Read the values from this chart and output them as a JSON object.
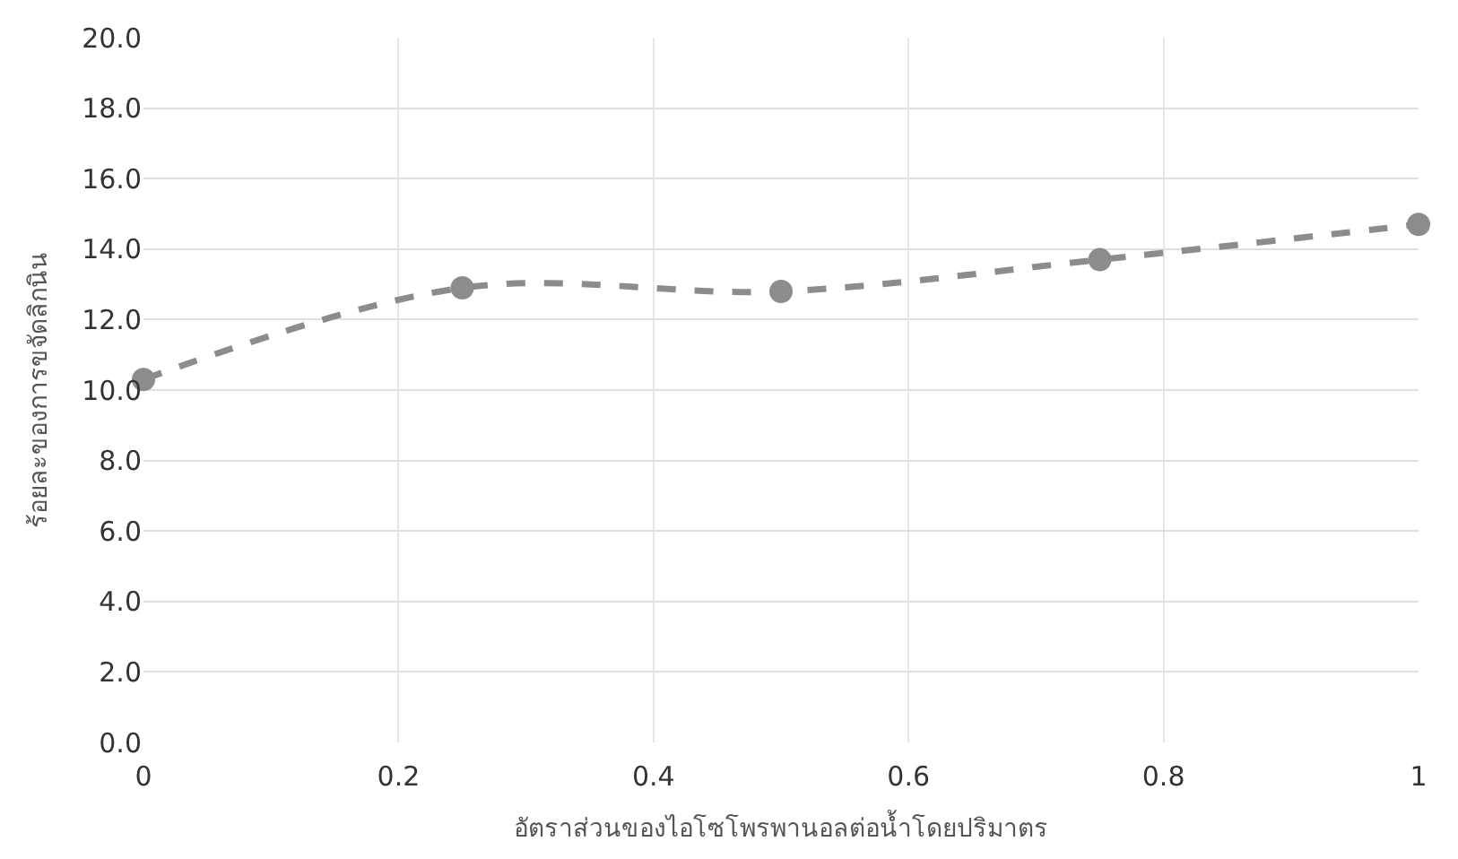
{
  "chart_data": {
    "type": "line",
    "xlabel": "อัตราส่วนของไอโซโพรพานอลต่อน้ำโดยปริมาตร",
    "ylabel": "ร้อยละของการขจัดลิกนิน",
    "x": [
      0,
      0.25,
      0.5,
      0.75,
      1
    ],
    "series": [
      {
        "color": "#8c8c8c",
        "values": [
          10.3,
          12.9,
          12.8,
          13.7,
          14.7
        ]
      }
    ],
    "xlim": [
      0,
      1
    ],
    "xticks": [
      0,
      0.2,
      0.4,
      0.6,
      0.8,
      1
    ],
    "ylim": [
      0,
      20
    ],
    "yticks": [
      {
        "value": 0,
        "label": "0.0"
      },
      {
        "value": 2,
        "label": "2.0"
      },
      {
        "value": 4,
        "label": "4.0"
      },
      {
        "value": 6,
        "label": "6.0"
      },
      {
        "value": 8,
        "label": "8.0"
      },
      {
        "value": 10,
        "label": "10.0"
      },
      {
        "value": 12,
        "label": "12.0"
      },
      {
        "value": 14,
        "label": "14.0"
      },
      {
        "value": 16,
        "label": "16.0"
      },
      {
        "value": 18,
        "label": "18.0"
      },
      {
        "value": 20,
        "label": "20.0"
      }
    ],
    "grid": true,
    "marker": "circle",
    "line_style": "dashed"
  }
}
